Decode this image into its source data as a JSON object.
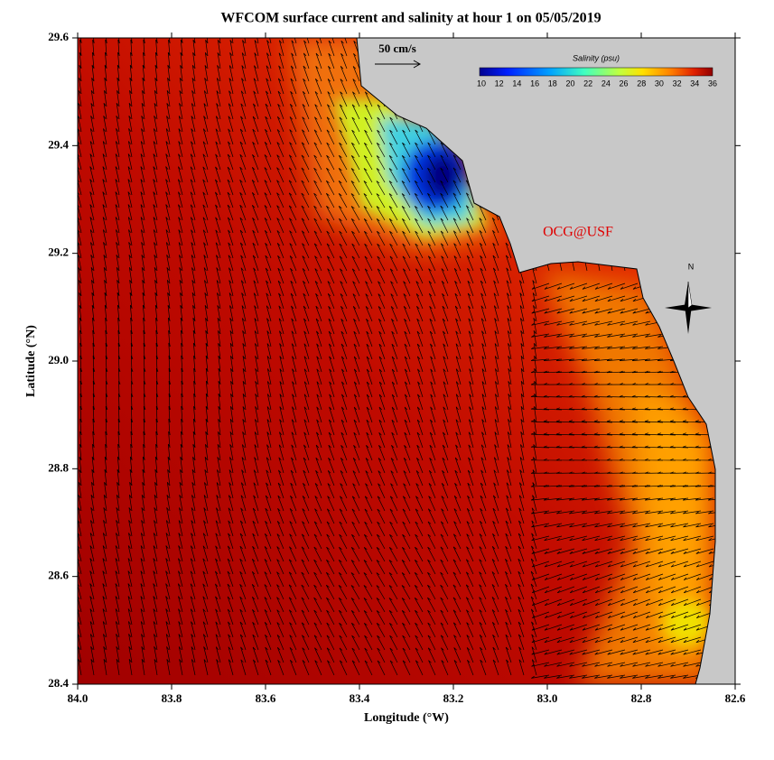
{
  "chart_data": {
    "type": "map",
    "title": "WFCOM surface current and salinity at hour 1 on 05/05/2019",
    "x_label": "Longitude (°W)",
    "y_label": "Latitude (°N)",
    "xlim": [
      84.0,
      82.6
    ],
    "ylim": [
      28.4,
      29.6
    ],
    "xticks": [
      {
        "value": 84,
        "label": "84.0"
      },
      83.8,
      83.6,
      83.4,
      83.2,
      {
        "value": 83,
        "label": "83.0"
      },
      82.8,
      82.6
    ],
    "yticks": [
      28.4,
      28.6,
      28.8,
      {
        "value": 29,
        "label": "29.0"
      },
      29.2,
      29.4,
      29.6
    ],
    "colorbar": {
      "label": "Salinity (psu)",
      "lim": [
        10,
        36
      ],
      "ticks": [
        10,
        12,
        14,
        16,
        18,
        20,
        22,
        24,
        26,
        28,
        30,
        32,
        34,
        36
      ]
    },
    "scale_label": "50 cm/s",
    "watermark": "OCG@USF",
    "compass": "N"
  }
}
